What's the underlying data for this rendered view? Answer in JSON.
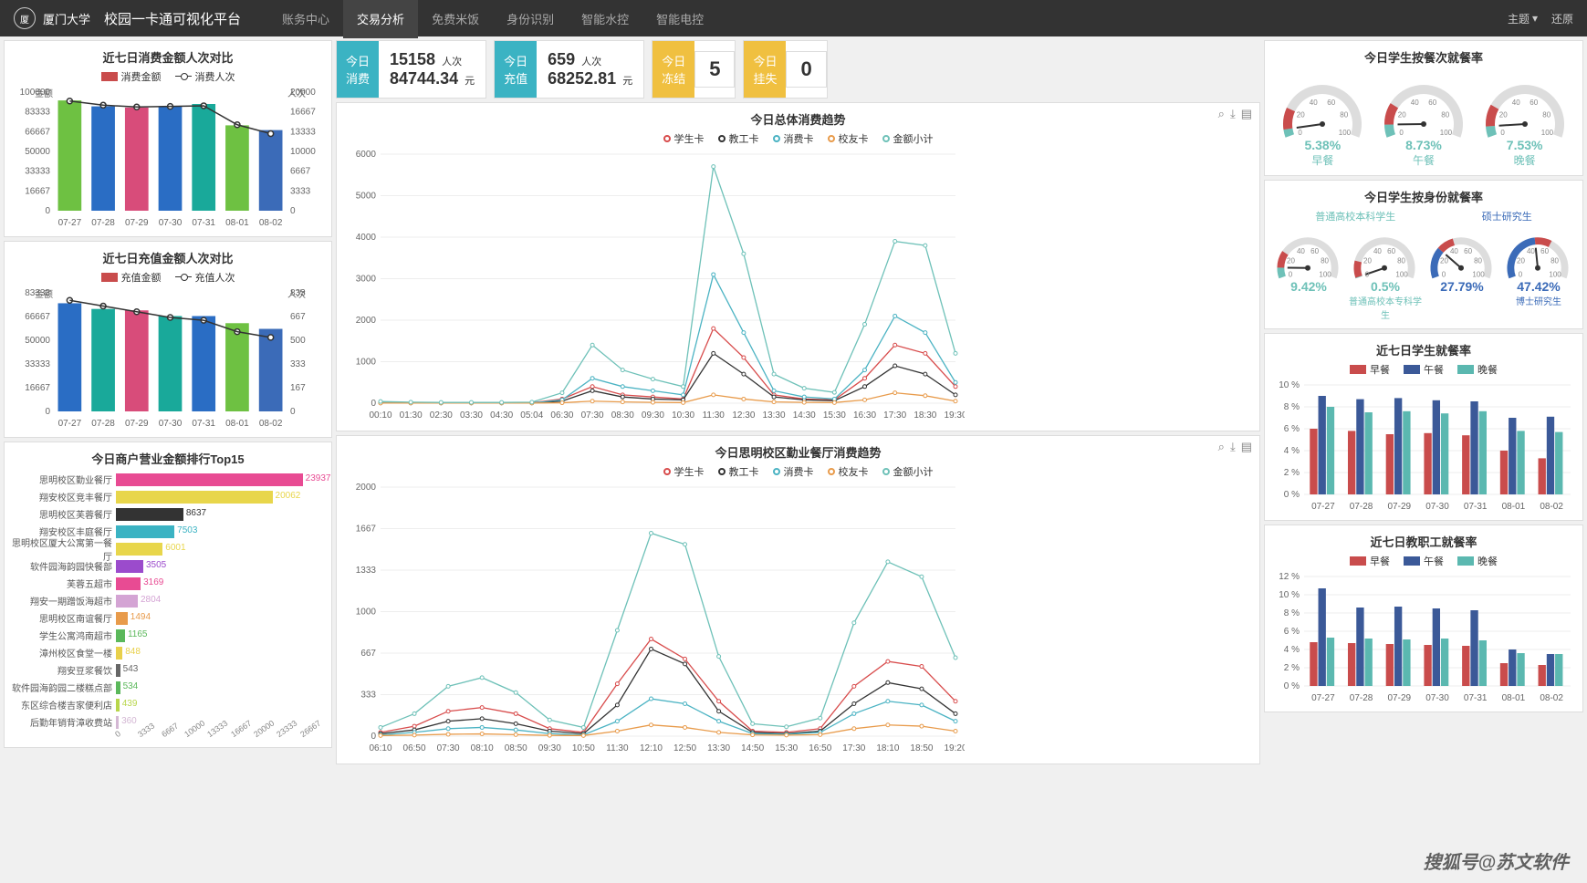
{
  "header": {
    "university": "厦门大学",
    "university_en": "XIAMEN UNIVERSITY",
    "platform": "校园一卡通可视化平台",
    "nav": [
      "账务中心",
      "交易分析",
      "免费米饭",
      "身份识别",
      "智能水控",
      "智能电控"
    ],
    "active_nav": 1,
    "theme": "主题",
    "restore": "还原"
  },
  "stats": [
    {
      "badge": "今日\n消费",
      "badge_color": "#3bb3c3",
      "v1": "15158",
      "u1": "人次",
      "v2": "84744.34",
      "u2": "元"
    },
    {
      "badge": "今日\n充值",
      "badge_color": "#3bb3c3",
      "v1": "659",
      "u1": "人次",
      "v2": "68252.81",
      "u2": "元"
    },
    {
      "badge": "今日\n冻结",
      "badge_color": "#f0c040",
      "val": "5"
    },
    {
      "badge": "今日\n挂失",
      "badge_color": "#f0c040",
      "val": "0"
    }
  ],
  "panel_a": {
    "title": "近七日消费金额人次对比",
    "legend": [
      "消费金额",
      "消费人次"
    ],
    "y_left_label": "金额",
    "y_right_label": "人次",
    "y_left": [
      0,
      16667,
      33333,
      50000,
      66667,
      83333,
      100000
    ],
    "y_right": [
      0,
      3333,
      6667,
      10000,
      13333,
      16667,
      20000
    ],
    "x": [
      "07-27",
      "07-28",
      "07-29",
      "07-30",
      "07-31",
      "08-01",
      "08-02"
    ],
    "bars": [
      93000,
      88000,
      87000,
      88000,
      90000,
      72000,
      68000
    ],
    "line": [
      18500,
      17800,
      17500,
      17600,
      17700,
      14500,
      13000
    ],
    "bar_colors": [
      "#6ec142",
      "#2a6dc4",
      "#d84c7a",
      "#2a6dc4",
      "#19a99a",
      "#6ec142",
      "#3b6bb8"
    ]
  },
  "panel_b": {
    "title": "近七日充值金额人次对比",
    "legend": [
      "充值金额",
      "充值人次"
    ],
    "y_left_label": "金额",
    "y_right_label": "人次",
    "y_left": [
      0,
      16667,
      33333,
      50000,
      66667,
      83333
    ],
    "y_right": [
      0,
      167,
      333,
      500,
      667,
      833
    ],
    "x": [
      "07-27",
      "07-28",
      "07-29",
      "07-30",
      "07-31",
      "08-01",
      "08-02"
    ],
    "bars": [
      76000,
      72000,
      71000,
      67000,
      67000,
      62000,
      58000
    ],
    "line": [
      780,
      740,
      700,
      660,
      640,
      560,
      520
    ],
    "bar_colors": [
      "#2a6dc4",
      "#19a99a",
      "#d84c7a",
      "#19a99a",
      "#2a6dc4",
      "#6ec142",
      "#3b6bb8"
    ]
  },
  "panel_c": {
    "title": "今日商户营业金额排行Top15",
    "max": 26667,
    "xticks": [
      0,
      3333,
      6667,
      10000,
      13333,
      16667,
      20000,
      23333,
      26667
    ],
    "items": [
      {
        "name": "思明校区勤业餐厅",
        "val": 23937,
        "color": "#e84b93"
      },
      {
        "name": "翔安校区竞丰餐厅",
        "val": 20062,
        "color": "#e8d64b"
      },
      {
        "name": "思明校区芙蓉餐厅",
        "val": 8637,
        "color": "#333333"
      },
      {
        "name": "翔安校区丰庭餐厅",
        "val": 7503,
        "color": "#3bb3c3"
      },
      {
        "name": "思明校区厦大公寓第一餐厅",
        "val": 6001,
        "color": "#e8d64b"
      },
      {
        "name": "软件园海韵园快餐部",
        "val": 3505,
        "color": "#9b4bcc"
      },
      {
        "name": "芙蓉五超市",
        "val": 3169,
        "color": "#e84b93"
      },
      {
        "name": "翔安一期蹭饭海超市",
        "val": 2804,
        "color": "#d4a4d4"
      },
      {
        "name": "思明校区南谊餐厅",
        "val": 1494,
        "color": "#e89b4b"
      },
      {
        "name": "学生公寓鸿南超市",
        "val": 1165,
        "color": "#5bb85b"
      },
      {
        "name": "漳州校区食堂一楼",
        "val": 848,
        "color": "#e8d04b"
      },
      {
        "name": "翔安豆浆餐饮",
        "val": 543,
        "color": "#666666"
      },
      {
        "name": "软件园海韵园二楼糕点部",
        "val": 534,
        "color": "#5bb85b"
      },
      {
        "name": "东区综合楼吉家便利店",
        "val": 439,
        "color": "#b8d64b"
      },
      {
        "name": "后勤年销背漳收费站",
        "val": 360,
        "color": "#d4b8d4"
      }
    ]
  },
  "panel_d": {
    "title": "今日总体消费趋势",
    "legend": [
      {
        "label": "学生卡",
        "color": "#d84c4c"
      },
      {
        "label": "教工卡",
        "color": "#333333"
      },
      {
        "label": "消费卡",
        "color": "#4bb3c3"
      },
      {
        "label": "校友卡",
        "color": "#e89b4b"
      },
      {
        "label": "金额小计",
        "color": "#6ec1b8"
      }
    ],
    "y": [
      0,
      1000,
      2000,
      3000,
      4000,
      5000,
      6000
    ],
    "x": [
      "00:10",
      "01:30",
      "02:30",
      "03:30",
      "04:30",
      "05:04",
      "06:30",
      "07:30",
      "08:30",
      "09:30",
      "10:30",
      "11:30",
      "12:30",
      "13:30",
      "14:30",
      "15:30",
      "16:30",
      "17:30",
      "18:30",
      "19:30"
    ],
    "series": [
      [
        20,
        10,
        5,
        5,
        5,
        10,
        100,
        400,
        200,
        150,
        100,
        1800,
        1100,
        200,
        100,
        80,
        600,
        1400,
        1200,
        400
      ],
      [
        5,
        5,
        5,
        5,
        5,
        5,
        50,
        300,
        150,
        100,
        80,
        1200,
        700,
        150,
        80,
        60,
        400,
        900,
        700,
        200
      ],
      [
        10,
        5,
        5,
        5,
        5,
        5,
        80,
        600,
        400,
        300,
        200,
        3100,
        1700,
        300,
        150,
        100,
        800,
        2100,
        1700,
        500
      ],
      [
        2,
        2,
        2,
        2,
        2,
        2,
        10,
        50,
        30,
        20,
        15,
        200,
        100,
        30,
        20,
        15,
        80,
        250,
        180,
        50
      ],
      [
        40,
        25,
        18,
        18,
        18,
        25,
        250,
        1400,
        800,
        580,
        400,
        5700,
        3600,
        700,
        360,
        260,
        1900,
        3900,
        3800,
        1200
      ]
    ]
  },
  "panel_e": {
    "title": "今日思明校区勤业餐厅消费趋势",
    "legend": [
      {
        "label": "学生卡",
        "color": "#d84c4c"
      },
      {
        "label": "教工卡",
        "color": "#333333"
      },
      {
        "label": "消费卡",
        "color": "#4bb3c3"
      },
      {
        "label": "校友卡",
        "color": "#e89b4b"
      },
      {
        "label": "金额小计",
        "color": "#6ec1b8"
      }
    ],
    "y": [
      0,
      333,
      667,
      1000,
      1333,
      1667,
      2000
    ],
    "x": [
      "06:10",
      "06:50",
      "07:30",
      "08:10",
      "08:50",
      "09:30",
      "10:50",
      "11:30",
      "12:10",
      "12:50",
      "13:30",
      "14:50",
      "15:30",
      "16:50",
      "17:30",
      "18:10",
      "18:50",
      "19:20"
    ],
    "series": [
      [
        30,
        80,
        200,
        230,
        180,
        60,
        30,
        420,
        780,
        620,
        280,
        40,
        30,
        60,
        400,
        600,
        560,
        280
      ],
      [
        20,
        50,
        120,
        140,
        100,
        40,
        20,
        250,
        700,
        580,
        200,
        30,
        20,
        40,
        260,
        430,
        380,
        180
      ],
      [
        10,
        30,
        60,
        70,
        50,
        20,
        10,
        120,
        300,
        260,
        120,
        20,
        15,
        30,
        180,
        280,
        250,
        120
      ],
      [
        5,
        8,
        15,
        18,
        12,
        6,
        5,
        40,
        90,
        70,
        30,
        10,
        8,
        12,
        60,
        90,
        80,
        40
      ],
      [
        70,
        180,
        400,
        470,
        350,
        130,
        70,
        850,
        1630,
        1540,
        640,
        100,
        75,
        145,
        910,
        1400,
        1280,
        630
      ]
    ]
  },
  "panel_f": {
    "title": "今日学生按餐次就餐率",
    "gauges": [
      {
        "val": "5.38%",
        "label": "早餐",
        "color": "#6ec1b8",
        "v": 5.38
      },
      {
        "val": "8.73%",
        "label": "午餐",
        "color": "#6ec1b8",
        "v": 8.73
      },
      {
        "val": "7.53%",
        "label": "晚餐",
        "color": "#6ec1b8",
        "v": 7.53
      }
    ]
  },
  "panel_g": {
    "title": "今日学生按身份就餐率",
    "top_labels": [
      "普通高校本科学生",
      "硕士研究生"
    ],
    "gauges": [
      {
        "val": "9.42%",
        "label": "",
        "color": "#6ec1b8",
        "v": 9.42
      },
      {
        "val": "0.5%",
        "label": "普通高校本专科学生",
        "color": "#6ec1b8",
        "v": 0.5
      },
      {
        "val": "27.79%",
        "label": "",
        "color": "#3b6bb8",
        "v": 27.79
      },
      {
        "val": "47.42%",
        "label": "博士研究生",
        "color": "#3b6bb8",
        "v": 47.42
      }
    ]
  },
  "panel_h": {
    "title": "近七日学生就餐率",
    "legend": [
      {
        "label": "早餐",
        "color": "#c94c4c"
      },
      {
        "label": "午餐",
        "color": "#3b5998"
      },
      {
        "label": "晚餐",
        "color": "#5bb8b0"
      }
    ],
    "y": [
      0,
      2,
      4,
      6,
      8,
      10
    ],
    "x": [
      "07-27",
      "07-28",
      "07-29",
      "07-30",
      "07-31",
      "08-01",
      "08-02"
    ],
    "series": [
      [
        6.0,
        5.8,
        5.5,
        5.6,
        5.4,
        4.0,
        3.3
      ],
      [
        9.0,
        8.7,
        8.8,
        8.6,
        8.5,
        7.0,
        7.1
      ],
      [
        8.0,
        7.5,
        7.6,
        7.4,
        7.6,
        5.8,
        5.7
      ]
    ]
  },
  "panel_i": {
    "title": "近七日教职工就餐率",
    "legend": [
      {
        "label": "早餐",
        "color": "#c94c4c"
      },
      {
        "label": "午餐",
        "color": "#3b5998"
      },
      {
        "label": "晚餐",
        "color": "#5bb8b0"
      }
    ],
    "y": [
      0,
      2,
      4,
      6,
      8,
      10,
      12
    ],
    "x": [
      "07-27",
      "07-28",
      "07-29",
      "07-30",
      "07-31",
      "08-01",
      "08-02"
    ],
    "series": [
      [
        4.8,
        4.7,
        4.6,
        4.5,
        4.4,
        2.5,
        2.3
      ],
      [
        10.7,
        8.6,
        8.7,
        8.5,
        8.3,
        4.0,
        3.5
      ],
      [
        5.3,
        5.2,
        5.1,
        5.2,
        5.0,
        3.6,
        3.5
      ]
    ]
  },
  "watermark": "搜狐号@苏文软件"
}
